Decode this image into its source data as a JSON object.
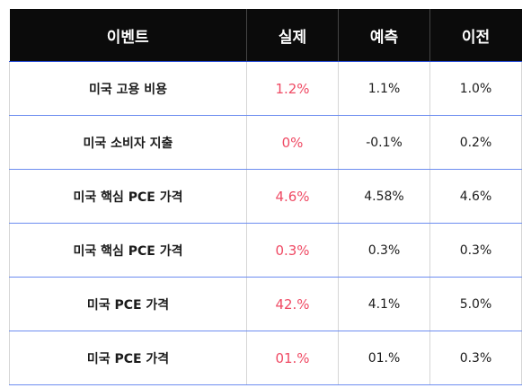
{
  "table": {
    "headers": [
      "이벤트",
      "실제",
      "예측",
      "이전"
    ],
    "rows": [
      {
        "event": "미국 고용 비용",
        "actual": "1.2%",
        "forecast": "1.1%",
        "previous": "1.0%"
      },
      {
        "event": "미국 소비자 지출",
        "actual": "0%",
        "forecast": "-0.1%",
        "previous": "0.2%"
      },
      {
        "event": "미국 핵심 PCE 가격",
        "actual": "4.6%",
        "forecast": "4.58%",
        "previous": "4.6%"
      },
      {
        "event": "미국 핵심 PCE 가격",
        "actual": "0.3%",
        "forecast": "0.3%",
        "previous": "0.3%"
      },
      {
        "event": "미국 PCE 가격",
        "actual": "42.%",
        "forecast": "4.1%",
        "previous": "5.0%"
      },
      {
        "event": "미국 PCE 가격",
        "actual": "01.%",
        "forecast": "01.%",
        "previous": "0.3%"
      }
    ]
  },
  "colors": {
    "header_bg": "#0b0b0b",
    "header_text": "#ffffff",
    "actual_text": "#ef4a64",
    "row_divider": "#6d8df0"
  }
}
